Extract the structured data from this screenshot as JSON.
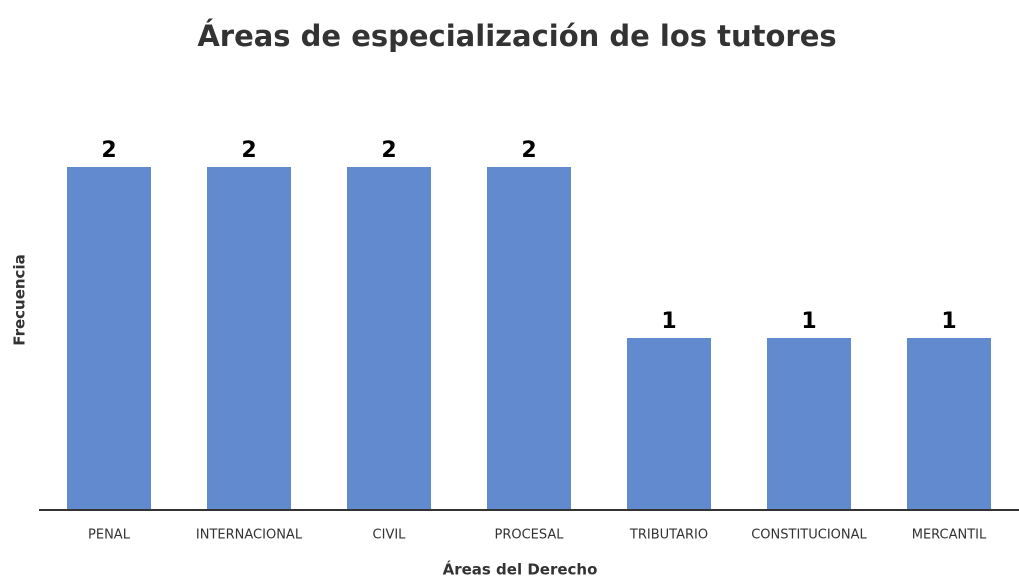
{
  "chart_data": {
    "type": "bar",
    "title": "Áreas de especialización de los tutores",
    "xlabel": "Áreas del Derecho",
    "ylabel": "Frecuencia",
    "categories": [
      "PENAL",
      "INTERNACIONAL",
      "CIVIL",
      "PROCESAL",
      "TRIBUTARIO",
      "CONSTITUCIONAL",
      "MERCANTIL"
    ],
    "values": [
      2,
      2,
      2,
      2,
      1,
      1,
      1
    ],
    "color": "#628bcf",
    "ylim": [
      0,
      2
    ]
  }
}
